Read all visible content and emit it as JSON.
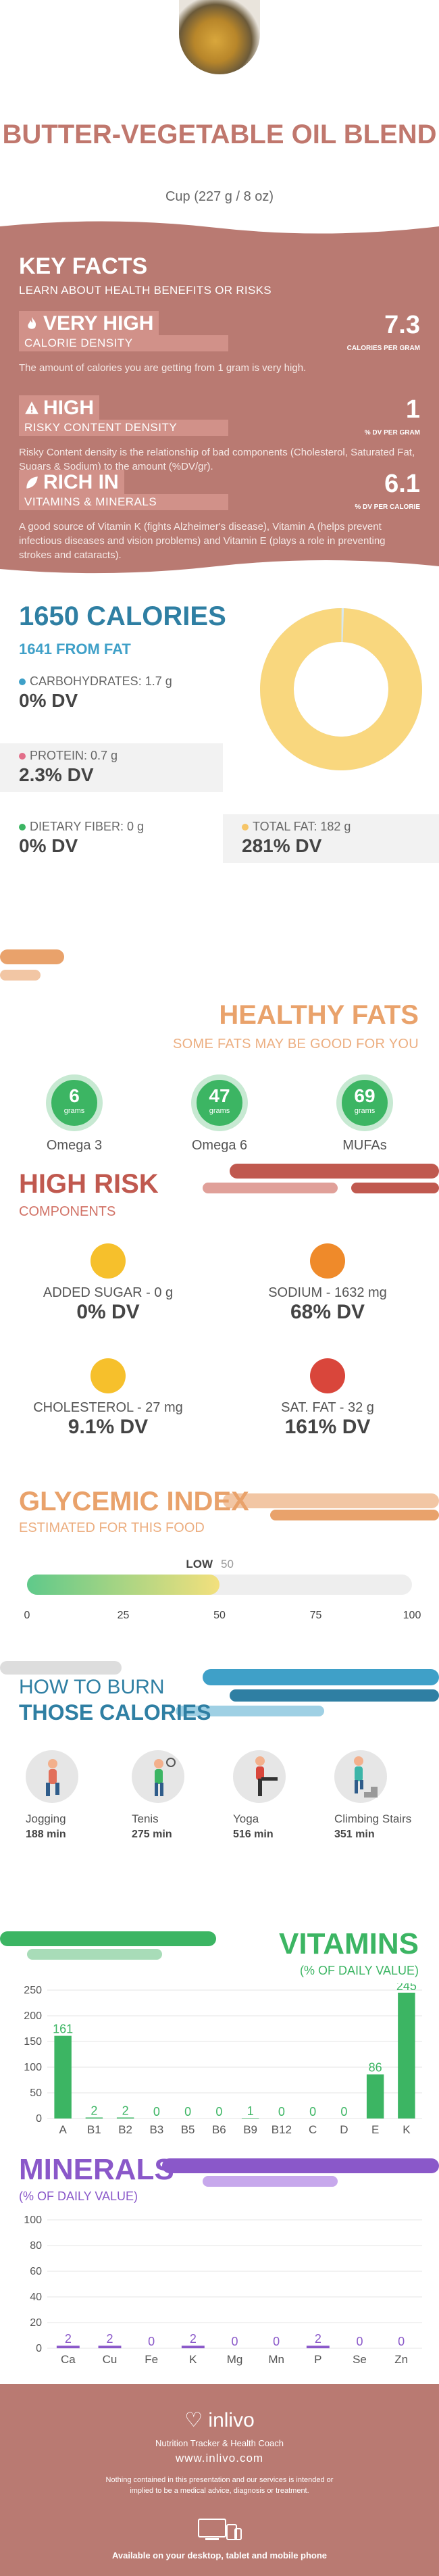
{
  "header": {
    "title": "BUTTER-VEGETABLE OIL BLEND",
    "serving": "Cup (227 g / 8 oz)"
  },
  "key_facts": {
    "title": "KEY FACTS",
    "subtitle": "LEARN ABOUT HEALTH BENEFITS OR RISKS",
    "items": [
      {
        "level": "VERY HIGH",
        "label": "CALORIE DENSITY",
        "value": "7.3",
        "unit": "CALORIES PER GRAM",
        "desc": "The amount of calories you are getting from 1 gram is very high.",
        "icon": "flame-icon"
      },
      {
        "level": "HIGH",
        "label": "RISKY CONTENT DENSITY",
        "value": "1",
        "unit": "% DV PER GRAM",
        "desc": "Risky Content density is the relationship of bad components (Cholesterol, Saturated Fat, Sugars & Sodium) to the amount (%DV/gr).",
        "icon": "warning-icon"
      },
      {
        "level": "RICH IN",
        "label": "VITAMINS & MINERALS",
        "value": "6.1",
        "unit": "% DV PER CALORIE",
        "desc": "A good source of Vitamin K (fights Alzheimer's disease), Vitamin A (helps prevent infectious diseases and vision problems) and Vitamin E (plays a role in preventing strokes and cataracts).",
        "icon": "leaf-icon"
      }
    ]
  },
  "calories": {
    "title": "1650 CALORIES",
    "from_fat": "1641 FROM FAT",
    "macros": [
      {
        "name": "CARBOHYDRATES: 1.7 g",
        "dv": "0% DV",
        "color": "#3fa0c8"
      },
      {
        "name": "PROTEIN: 0.7 g",
        "dv": "2.3% DV",
        "color": "#e26f8a"
      },
      {
        "name": "DIETARY FIBER: 0 g",
        "dv": "0% DV",
        "color": "#3cb563"
      },
      {
        "name": "TOTAL FAT: 182 g",
        "dv": "281% DV",
        "color": "#f6c567"
      }
    ],
    "donut": {
      "fat_fraction": 0.995,
      "fat_color": "#f9d77e",
      "other_color": "#d8e8ee"
    }
  },
  "healthy_fats": {
    "title": "HEALTHY FATS",
    "subtitle": "SOME FATS MAY BE GOOD FOR YOU",
    "unit": "grams",
    "items": [
      {
        "value": "6",
        "name": "Omega 3"
      },
      {
        "value": "47",
        "name": "Omega 6"
      },
      {
        "value": "69",
        "name": "MUFAs"
      }
    ]
  },
  "high_risk": {
    "title": "HIGH RISK",
    "subtitle": "COMPONENTS",
    "items": [
      {
        "name": "ADDED SUGAR - 0 g",
        "dv": "0% DV",
        "face": "grin-face-icon",
        "color": "#f6c02c"
      },
      {
        "name": "SODIUM - 1632 mg",
        "dv": "68% DV",
        "face": "sad-face-icon",
        "color": "#ef8a2a"
      },
      {
        "name": "CHOLESTEROL - 27 mg",
        "dv": "9.1% DV",
        "face": "smile-face-icon",
        "color": "#f6c02c"
      },
      {
        "name": "SAT. FAT - 32 g",
        "dv": "161% DV",
        "face": "sick-face-icon",
        "color": "#d9463b"
      }
    ]
  },
  "glycemic": {
    "title": "GLYCEMIC INDEX",
    "subtitle": "ESTIMATED FOR THIS FOOD",
    "level": "LOW",
    "value": 50,
    "value_label": "50",
    "ticks": [
      "0",
      "25",
      "50",
      "75",
      "100"
    ]
  },
  "burn": {
    "title_1": "HOW TO BURN",
    "title_2": "THOSE CALORIES",
    "activities": [
      {
        "name": "Jogging",
        "minutes": "188 min",
        "icon": "jogging-icon"
      },
      {
        "name": "Tenis",
        "minutes": "275 min",
        "icon": "tennis-icon"
      },
      {
        "name": "Yoga",
        "minutes": "516 min",
        "icon": "yoga-icon"
      },
      {
        "name": "Climbing Stairs",
        "minutes": "351 min",
        "icon": "stairs-icon"
      }
    ]
  },
  "vitamins_header": {
    "title": "VITAMINS",
    "subtitle": "(% OF DAILY VALUE)"
  },
  "minerals_header": {
    "title": "MINERALS",
    "subtitle": "(% OF DAILY VALUE)"
  },
  "chart_data": [
    {
      "type": "bar",
      "title": "VITAMINS",
      "subtitle": "(% OF DAILY VALUE)",
      "categories": [
        "A",
        "B1",
        "B2",
        "B3",
        "B5",
        "B6",
        "B9",
        "B12",
        "C",
        "D",
        "E",
        "K"
      ],
      "values": [
        161,
        2,
        2,
        0,
        0,
        0,
        1,
        0,
        0,
        0,
        86,
        245
      ],
      "ylim": [
        0,
        250
      ],
      "yticks": [
        "0",
        "50",
        "100",
        "150",
        "200",
        "250"
      ],
      "color": "#3cb563",
      "grid": true
    },
    {
      "type": "bar",
      "title": "MINERALS",
      "subtitle": "(% OF DAILY VALUE)",
      "categories": [
        "Ca",
        "Cu",
        "Fe",
        "K",
        "Mg",
        "Mn",
        "P",
        "Se",
        "Zn"
      ],
      "values": [
        2,
        2,
        0,
        2,
        0,
        0,
        2,
        0,
        0
      ],
      "ylim": [
        0,
        100
      ],
      "yticks": [
        "0",
        "20",
        "40",
        "60",
        "80",
        "100"
      ],
      "color": "#8a58c9",
      "grid": true
    }
  ],
  "footer": {
    "logo": "inlivo",
    "tagline": "Nutrition Tracker & Health Coach",
    "url": "www.inlivo.com",
    "disclaimer": "Nothing contained in this presentation and our services is intended or implied to be a medical advice, diagnosis or treatment.",
    "available": "Available on your desktop, tablet and mobile phone"
  }
}
